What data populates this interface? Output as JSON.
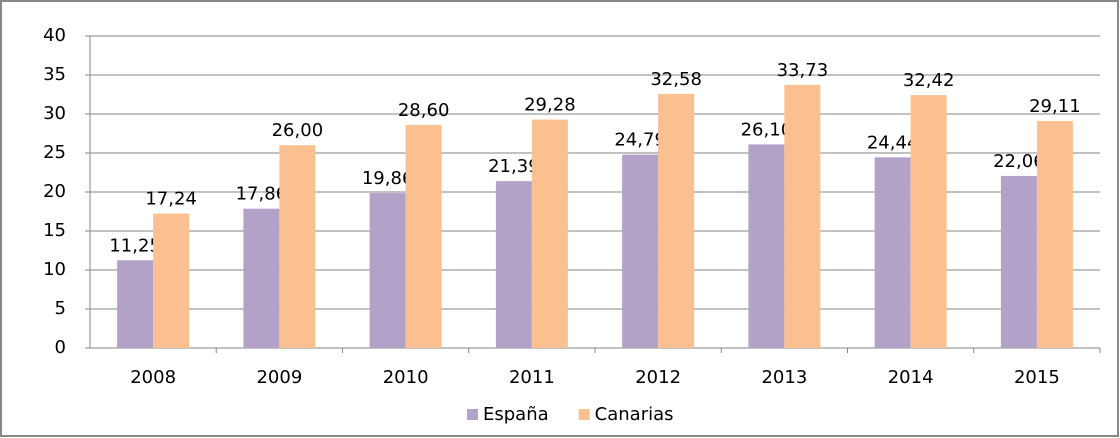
{
  "chart_data": {
    "type": "bar",
    "categories": [
      "2008",
      "2009",
      "2010",
      "2011",
      "2012",
      "2013",
      "2014",
      "2015"
    ],
    "series": [
      {
        "name": "España",
        "color": "#b3a2c7",
        "values": [
          11.25,
          17.86,
          19.86,
          21.39,
          24.79,
          26.1,
          24.44,
          22.06
        ],
        "value_labels": [
          "11,25",
          "17,86",
          "19,86",
          "21,39",
          "24,79",
          "26,10",
          "24,44",
          "22,06"
        ]
      },
      {
        "name": "Canarias",
        "color": "#fac090",
        "values": [
          17.24,
          26.0,
          28.6,
          29.28,
          32.58,
          33.73,
          32.42,
          29.11
        ],
        "value_labels": [
          "17,24",
          "26,00",
          "28,60",
          "29,28",
          "32,58",
          "33,73",
          "32,42",
          "29,11"
        ]
      }
    ],
    "ylim": [
      0,
      40
    ],
    "yticks": [
      0,
      5,
      10,
      15,
      20,
      25,
      30,
      35,
      40
    ],
    "grid": true,
    "legend": "bottom"
  }
}
